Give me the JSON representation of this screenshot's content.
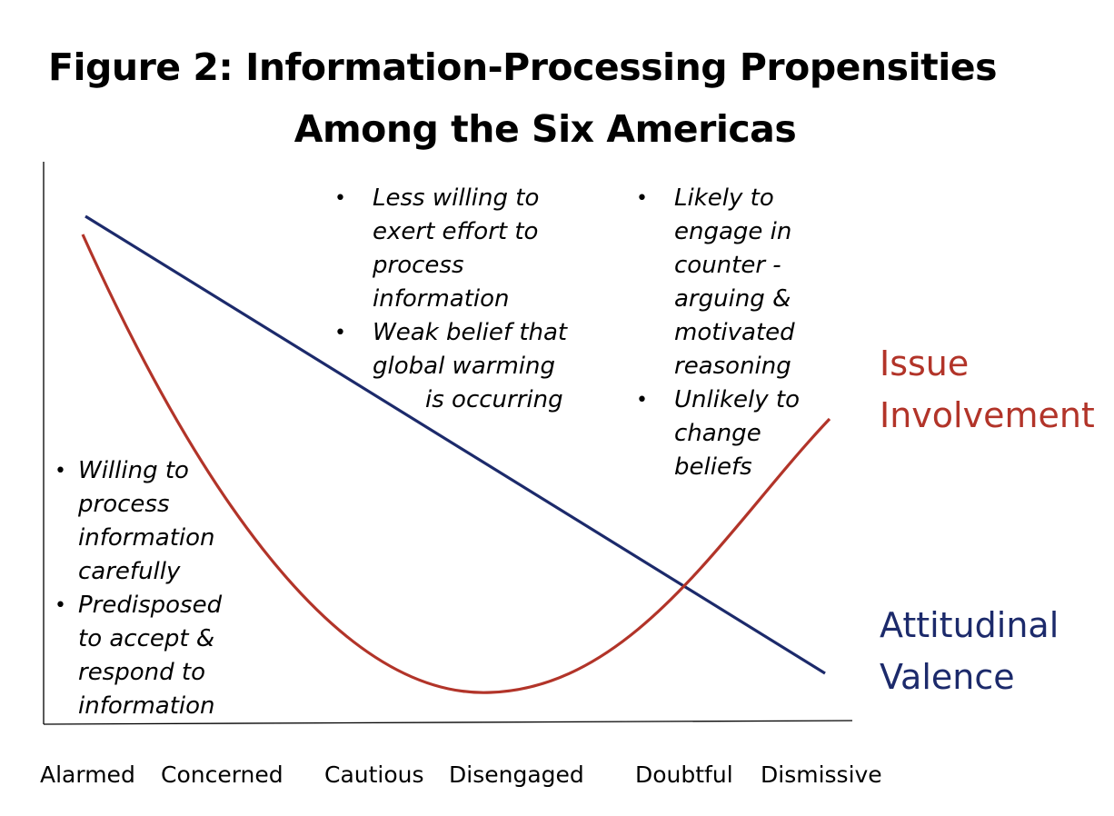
{
  "title": {
    "line1": "Figure 2:  Information-Processing Propensities",
    "line2": "Among the Six Americas"
  },
  "categories": [
    "Alarmed",
    "Concerned",
    "Cautious",
    "Disengaged",
    "Doubtful",
    "Dismissive"
  ],
  "notes": {
    "left": {
      "b1": [
        "Willing to",
        "process",
        "information",
        "carefully"
      ],
      "b2": [
        "Predisposed",
        "to accept &",
        "respond to",
        "information"
      ]
    },
    "middle": {
      "b1": [
        "Less willing to",
        "exert effort to",
        "process",
        "information"
      ],
      "b2": [
        "Weak belief that",
        "global warming",
        "is occurring"
      ]
    },
    "right": {
      "b1": [
        "Likely to",
        "engage in",
        "counter -",
        "arguing &",
        "motivated",
        "reasoning"
      ],
      "b2": [
        "Unlikely to",
        "change",
        "beliefs"
      ]
    }
  },
  "series": {
    "issue": {
      "label_line1": "Issue",
      "label_line2": "Involvement",
      "color": "#b23429"
    },
    "attitudinal": {
      "label_line1": "Attitudinal",
      "label_line2": "Valence",
      "color": "#1c2a6b"
    }
  }
}
